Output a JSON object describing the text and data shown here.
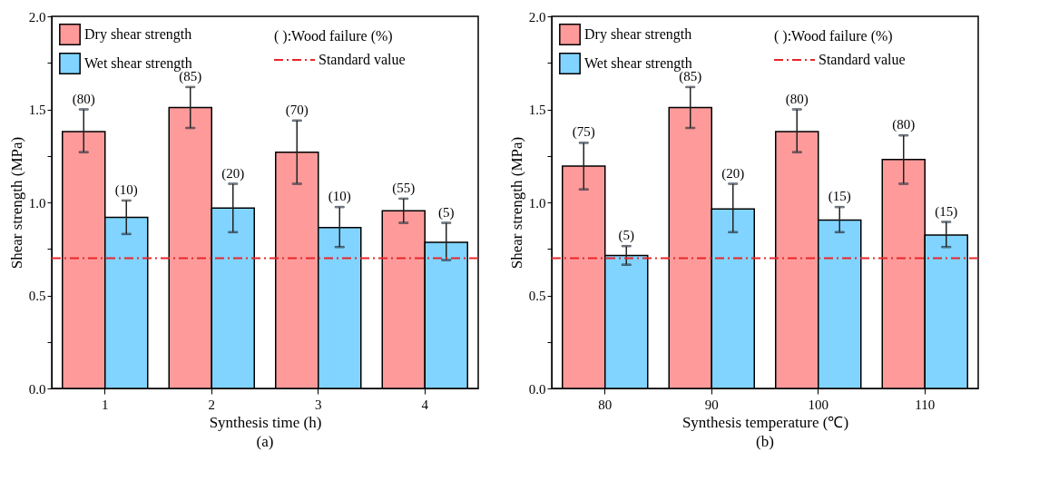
{
  "chart_data": [
    {
      "type": "bar",
      "title": "(a)",
      "xlabel": "Synthesis time (h)",
      "ylabel": "Shear strength (MPa)",
      "categories": [
        "1",
        "2",
        "3",
        "4"
      ],
      "series": [
        {
          "name": "Dry shear strength",
          "color": "#ff9a9a",
          "values": [
            1.38,
            1.51,
            1.27,
            0.955
          ],
          "errors": [
            [
              1.27,
              1.5
            ],
            [
              1.4,
              1.62
            ],
            [
              1.1,
              1.44
            ],
            [
              0.89,
              1.02
            ]
          ]
        },
        {
          "name": "Wet shear strength",
          "color": "#80d4ff",
          "values": [
            0.92,
            0.97,
            0.865,
            0.785
          ],
          "errors": [
            [
              0.83,
              1.01
            ],
            [
              0.84,
              1.1
            ],
            [
              0.76,
              0.975
            ],
            [
              0.69,
              0.89
            ]
          ]
        }
      ],
      "ylim": [
        0,
        2
      ],
      "yticks": [
        {
          "value": 0,
          "label": "0.0"
        },
        {
          "value": 0.25,
          "label": null
        },
        {
          "value": 0.5,
          "label": "0.5"
        },
        {
          "value": 0.75,
          "label": null
        },
        {
          "value": 1,
          "label": "1.0"
        },
        {
          "value": 1.25,
          "label": null
        },
        {
          "value": 1.5,
          "label": "1.5"
        },
        {
          "value": 1.75,
          "label": null
        },
        {
          "value": 2,
          "label": "2.0"
        }
      ],
      "ref_lines": [
        {
          "axis": "y",
          "value": 0.7,
          "label": "Standard value",
          "color": "#e8262a",
          "line_style": "dashed"
        }
      ],
      "annotations": [
        "(      ):Wood failure (%)",
        "(80)",
        "(10)",
        "(85)",
        "(20)",
        "(70)",
        "(10)",
        "(55)",
        "(5)"
      ],
      "legend": "top left",
      "grid": false
    },
    {
      "type": "bar",
      "title": "(b)",
      "xlabel": "Synthesis temperature (℃)",
      "ylabel": "Shear strength (MPa)",
      "categories": [
        "80",
        "90",
        "100",
        "110"
      ],
      "series": [
        {
          "name": "Dry shear strength",
          "color": "#ff9a9a",
          "values": [
            1.195,
            1.51,
            1.38,
            1.23
          ],
          "errors": [
            [
              1.07,
              1.32
            ],
            [
              1.4,
              1.62
            ],
            [
              1.27,
              1.5
            ],
            [
              1.1,
              1.36
            ]
          ]
        },
        {
          "name": "Wet shear strength",
          "color": "#80d4ff",
          "values": [
            0.715,
            0.965,
            0.905,
            0.825
          ],
          "errors": [
            [
              0.665,
              0.765
            ],
            [
              0.84,
              1.1
            ],
            [
              0.84,
              0.975
            ],
            [
              0.76,
              0.895
            ]
          ]
        }
      ],
      "ylim": [
        0,
        2
      ],
      "yticks": [
        {
          "value": 0,
          "label": "0.0"
        },
        {
          "value": 0.25,
          "label": null
        },
        {
          "value": 0.5,
          "label": "0.5"
        },
        {
          "value": 0.75,
          "label": null
        },
        {
          "value": 1,
          "label": "1.0"
        },
        {
          "value": 1.25,
          "label": null
        },
        {
          "value": 1.5,
          "label": "1.5"
        },
        {
          "value": 1.75,
          "label": null
        },
        {
          "value": 2,
          "label": "2.0"
        }
      ],
      "ref_lines": [
        {
          "axis": "y",
          "value": 0.7,
          "label": "Standard value",
          "color": "#e8262a",
          "line_style": "dashed"
        }
      ],
      "annotations": [
        "(      ):Wood failure (%)",
        "(75)",
        "(5)",
        "(85)",
        "(20)",
        "(80)",
        "(15)",
        "(80)",
        "(15)"
      ],
      "legend": "top left",
      "grid": false
    }
  ]
}
